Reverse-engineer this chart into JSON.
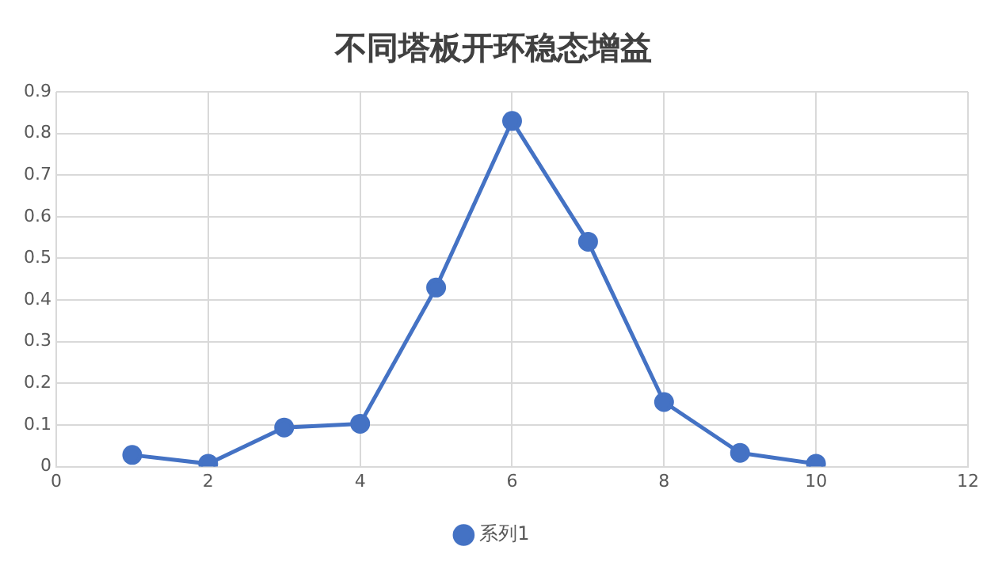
{
  "chart_data": {
    "type": "line",
    "title": "不同塔板开环稳态增益",
    "x": [
      1,
      2,
      3,
      4,
      5,
      6,
      7,
      8,
      9,
      10
    ],
    "series": [
      {
        "name": "系列1",
        "color": "#4472c4",
        "values": [
          0.028,
          0.007,
          0.094,
          0.103,
          0.43,
          0.83,
          0.54,
          0.155,
          0.033,
          0.007
        ]
      }
    ],
    "xlim": [
      0,
      12
    ],
    "xticks": [
      0,
      2,
      4,
      6,
      8,
      10,
      12
    ],
    "ylim": [
      0,
      0.9
    ],
    "yticks": [
      0,
      0.1,
      0.2,
      0.3,
      0.4,
      0.5,
      0.6,
      0.7,
      0.8,
      0.9
    ],
    "grid": true,
    "legend": "bottom",
    "marker": "circle",
    "line_style": "solid"
  }
}
